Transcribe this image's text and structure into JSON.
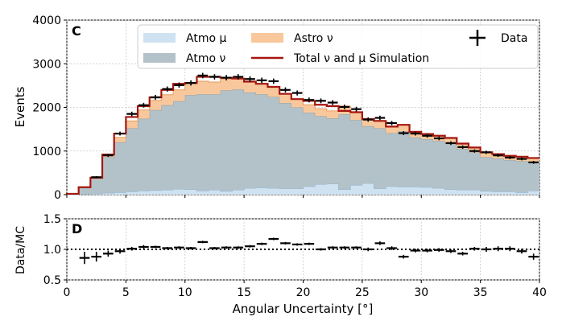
{
  "chart_data": [
    {
      "type": "area",
      "panel_label": "C",
      "ylabel": "Events",
      "xlabel": "",
      "xlim": [
        0,
        40
      ],
      "ylim": [
        0,
        4000
      ],
      "yticks": [
        "0",
        "1000",
        "2000",
        "3000",
        "4000"
      ],
      "grid": true,
      "legend_position": "top",
      "bin_edges": [
        0,
        1,
        2,
        3,
        4,
        5,
        6,
        7,
        8,
        9,
        10,
        11,
        12,
        13,
        14,
        15,
        16,
        17,
        18,
        19,
        20,
        21,
        22,
        23,
        24,
        25,
        26,
        27,
        28,
        29,
        30,
        31,
        32,
        33,
        34,
        35,
        36,
        37,
        38,
        39,
        40
      ],
      "series": [
        {
          "name": "Atmo μ",
          "color": "#cfe2f1",
          "values": [
            0,
            10,
            20,
            40,
            50,
            70,
            90,
            100,
            110,
            130,
            120,
            90,
            110,
            80,
            110,
            150,
            160,
            150,
            140,
            140,
            190,
            240,
            250,
            120,
            220,
            260,
            140,
            190,
            180,
            180,
            170,
            150,
            120,
            110,
            110,
            80,
            70,
            70,
            50,
            90
          ]
        },
        {
          "name": "Atmo ν",
          "color": "#b3c2c9",
          "values": [
            20,
            150,
            340,
            820,
            1150,
            1450,
            1650,
            1840,
            1940,
            2010,
            2160,
            2210,
            2190,
            2310,
            2300,
            2190,
            2140,
            2090,
            1960,
            1860,
            1690,
            1560,
            1500,
            1720,
            1490,
            1310,
            1380,
            1220,
            1270,
            1130,
            1100,
            1080,
            1060,
            940,
            860,
            780,
            760,
            720,
            720,
            650
          ]
        },
        {
          "name": "Astro ν",
          "color": "#f8c89c",
          "values": [
            0,
            10,
            30,
            60,
            110,
            170,
            200,
            220,
            240,
            260,
            280,
            300,
            280,
            260,
            250,
            250,
            240,
            230,
            210,
            190,
            180,
            170,
            170,
            190,
            180,
            160,
            170,
            150,
            150,
            130,
            120,
            120,
            120,
            120,
            110,
            110,
            100,
            100,
            100,
            100
          ]
        },
        {
          "name": "Total ν and μ Simulation",
          "color": "#a5160f",
          "type": "step",
          "values": [
            20,
            170,
            390,
            920,
            1400,
            1780,
            2030,
            2230,
            2400,
            2540,
            2560,
            2700,
            2700,
            2680,
            2660,
            2590,
            2540,
            2470,
            2310,
            2190,
            2150,
            2060,
            2030,
            1920,
            1890,
            1730,
            1690,
            1560,
            1600,
            1440,
            1390,
            1350,
            1300,
            1170,
            1080,
            970,
            930,
            890,
            870,
            840
          ]
        },
        {
          "name": "Data",
          "type": "errorbar",
          "color": "#000000",
          "values": [
            null,
            null,
            400,
            900,
            1400,
            1850,
            2050,
            2230,
            2420,
            2510,
            2560,
            2730,
            2700,
            2680,
            2700,
            2650,
            2620,
            2600,
            2400,
            2330,
            2170,
            2150,
            2110,
            2010,
            1960,
            1720,
            1760,
            1640,
            1410,
            1400,
            1350,
            1290,
            1180,
            1090,
            1000,
            970,
            900,
            850,
            820,
            740
          ]
        }
      ],
      "legend": {
        "entries": [
          "Atmo μ",
          "Astro ν",
          "Data",
          "Atmo ν",
          "Total ν and μ Simulation"
        ]
      }
    },
    {
      "type": "scatter",
      "panel_label": "D",
      "ylabel": "Data/MC",
      "xlabel": "Angular Uncertainty [°]",
      "xlim": [
        0,
        40
      ],
      "ylim": [
        0.5,
        1.5
      ],
      "yticks": [
        "0.5",
        "1.0",
        "1.5"
      ],
      "xticks": [
        "0",
        "5",
        "10",
        "15",
        "20",
        "25",
        "30",
        "35",
        "40"
      ],
      "reference_line": 1.0,
      "grid": true,
      "x": [
        1.5,
        2.5,
        3.5,
        4.5,
        5.5,
        6.5,
        7.5,
        8.5,
        9.5,
        10.5,
        11.5,
        12.5,
        13.5,
        14.5,
        15.5,
        16.5,
        17.5,
        18.5,
        19.5,
        20.5,
        21.5,
        22.5,
        23.5,
        24.5,
        25.5,
        26.5,
        27.5,
        28.5,
        29.5,
        30.5,
        31.5,
        32.5,
        33.5,
        34.5,
        35.5,
        36.5,
        37.5,
        38.5,
        39.5
      ],
      "values": [
        0.86,
        0.88,
        0.93,
        0.97,
        1.01,
        1.04,
        1.04,
        1.02,
        1.03,
        1.02,
        1.12,
        1.02,
        1.03,
        1.03,
        1.05,
        1.09,
        1.17,
        1.1,
        1.08,
        1.09,
        1.0,
        1.03,
        1.03,
        1.03,
        1.0,
        1.1,
        1.02,
        0.88,
        0.98,
        0.98,
        0.99,
        0.97,
        0.93,
        1.01,
        1.0,
        1.01,
        1.01,
        0.97,
        0.88
      ],
      "errors": [
        0.1,
        0.08,
        0.05,
        0.04,
        0.03,
        0.03,
        0.02,
        0.02,
        0.02,
        0.02,
        0.02,
        0.02,
        0.02,
        0.02,
        0.02,
        0.02,
        0.02,
        0.02,
        0.02,
        0.02,
        0.02,
        0.02,
        0.02,
        0.02,
        0.03,
        0.03,
        0.03,
        0.03,
        0.03,
        0.03,
        0.03,
        0.03,
        0.03,
        0.03,
        0.04,
        0.04,
        0.04,
        0.04,
        0.05
      ]
    }
  ]
}
